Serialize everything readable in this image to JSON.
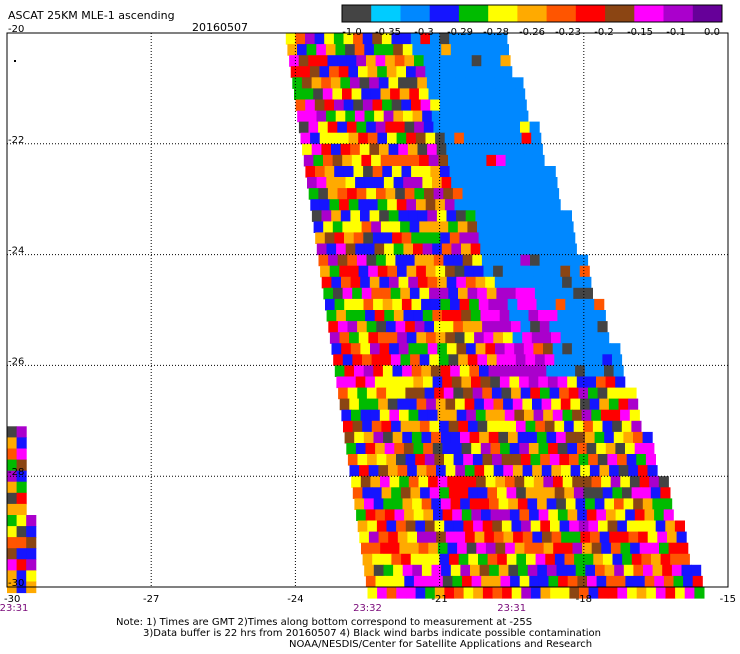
{
  "title": "ASCAT 25KM MLE-1 ascending",
  "date": "20160507",
  "colorbar": {
    "colors": [
      "#444444",
      "#00ccff",
      "#0088ff",
      "#1515ff",
      "#00bb00",
      "#ffff00",
      "#ffaa00",
      "#ff5500",
      "#ff0000",
      "#8b4513",
      "#ff00ff",
      "#aa00cc",
      "#660099"
    ],
    "labels": [
      "-1.0",
      "-0.35",
      "-0.3",
      "-0.29",
      "-0.28",
      "-0.26",
      "-0.23",
      "-0.2",
      "-0.15",
      "-0.1",
      "0.0"
    ]
  },
  "chart_data": {
    "type": "heatmap",
    "title": "ASCAT 25KM MLE-1 ascending",
    "xlim": [
      -30,
      -15
    ],
    "ylim": [
      -30,
      -20
    ],
    "x_ticks": [
      "-30",
      "-27",
      "-24",
      "-21",
      "-18",
      "-15"
    ],
    "y_ticks": [
      "-20",
      "-22",
      "-24",
      "-26",
      "-28",
      "-30"
    ],
    "grid": true,
    "times": [
      {
        "lon": -30,
        "label": "23:31"
      },
      {
        "lon": -22.5,
        "label": "23:32"
      },
      {
        "lon": -19.5,
        "label": "23:31"
      }
    ],
    "swaths": [
      {
        "name": "main",
        "lat_top": -20,
        "lat_bottom": -30,
        "lon_left_top": -24.2,
        "lon_left_bottom": -22.5,
        "lon_right_top": -19.8,
        "lon_right_bottom": -15.6
      },
      {
        "name": "edge",
        "lat_top": -27.1,
        "lat_bottom": -30,
        "lon_left_top": -30,
        "lon_left_bottom": -30,
        "lon_right_top": -29.7,
        "lon_right_bottom": -29.5
      }
    ]
  },
  "notes": [
    "Note: 1) Times are GMT 2)Times along bottom correspond to measurement at -25S",
    "3)Data buffer is 22 hrs from 20160507 4) Black wind barbs indicate possible contamination",
    "NOAA/NESDIS/Center for Satellite Applications and Research"
  ]
}
